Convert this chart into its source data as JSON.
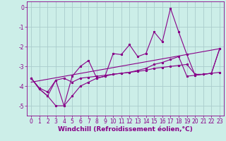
{
  "xlabel": "Windchill (Refroidissement éolien,°C)",
  "bg_color": "#cceee8",
  "grid_color": "#aacccc",
  "line_color": "#880088",
  "xlim": [
    -0.5,
    23.5
  ],
  "ylim": [
    -5.5,
    0.3
  ],
  "yticks": [
    0,
    -1,
    -2,
    -3,
    -4,
    -5
  ],
  "xticks": [
    0,
    1,
    2,
    3,
    4,
    5,
    6,
    7,
    8,
    9,
    10,
    11,
    12,
    13,
    14,
    15,
    16,
    17,
    18,
    19,
    20,
    21,
    22,
    23
  ],
  "line1_x": [
    0,
    1,
    2,
    3,
    4,
    5,
    6,
    7,
    8,
    9,
    10,
    11,
    12,
    13,
    14,
    15,
    16,
    17,
    18,
    19,
    20,
    21,
    22,
    23
  ],
  "line1_y": [
    -3.6,
    -4.1,
    -4.3,
    -3.7,
    -3.6,
    -3.8,
    -3.6,
    -3.55,
    -3.5,
    -3.45,
    -3.4,
    -3.35,
    -3.3,
    -3.25,
    -3.2,
    -3.1,
    -3.05,
    -3.0,
    -2.95,
    -2.9,
    -3.4,
    -3.4,
    -3.35,
    -3.3
  ],
  "line2_x": [
    0,
    1,
    2,
    3,
    4,
    5,
    6,
    7,
    8,
    9,
    10,
    11,
    12,
    13,
    14,
    15,
    16,
    17,
    18,
    19,
    20,
    21,
    22,
    23
  ],
  "line2_y": [
    -3.6,
    -4.15,
    -4.5,
    -5.0,
    -5.0,
    -4.5,
    -4.0,
    -3.8,
    -3.6,
    -3.5,
    -3.4,
    -3.35,
    -3.3,
    -3.2,
    -3.1,
    -2.9,
    -2.8,
    -2.65,
    -2.5,
    -3.5,
    -3.45,
    -3.4,
    -3.35,
    -2.1
  ],
  "line3_x": [
    0,
    1,
    2,
    3,
    4,
    5,
    6,
    7,
    8,
    9,
    10,
    11,
    12,
    13,
    14,
    15,
    16,
    17,
    18,
    19,
    20,
    21,
    22,
    23
  ],
  "line3_y": [
    -3.6,
    -4.15,
    -4.5,
    -3.7,
    -5.0,
    -3.5,
    -3.0,
    -2.7,
    -3.6,
    -3.5,
    -2.35,
    -2.4,
    -1.9,
    -2.5,
    -2.35,
    -1.25,
    -1.75,
    -0.05,
    -1.25,
    -2.4,
    -3.45,
    -3.4,
    -3.35,
    -2.1
  ],
  "line4_x": [
    0,
    23
  ],
  "line4_y": [
    -3.8,
    -2.1
  ],
  "xlabel_fontsize": 6.5,
  "tick_fontsize": 5.5,
  "lw": 0.8,
  "ms": 2.0
}
